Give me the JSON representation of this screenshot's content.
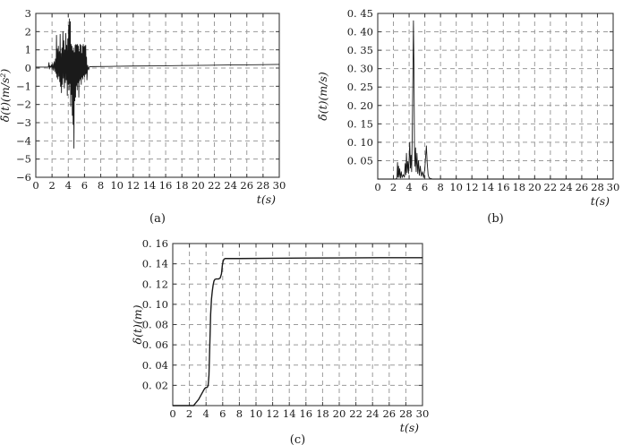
{
  "figure": {
    "background": "#ffffff",
    "line_color": "#1a1a1a",
    "grid_color": "#9b9b9b",
    "axis_color": "#3a3a3a"
  },
  "chart_data": [
    {
      "id": "a",
      "type": "line",
      "caption": "(a)",
      "xlabel": "t(s)",
      "ylabel": "δ̈(t)(m/s²)",
      "xlim": [
        0,
        30
      ],
      "ylim": [
        -6,
        3
      ],
      "grid": true,
      "legend": "none",
      "xticks": [
        0,
        2,
        4,
        6,
        8,
        10,
        12,
        14,
        16,
        18,
        20,
        22,
        24,
        26,
        28,
        30
      ],
      "ytick_values": [
        3,
        2,
        1,
        0,
        -1,
        -2,
        -3,
        -4,
        -5,
        -6
      ],
      "ytick_labels": [
        "3",
        "2",
        "1",
        "0",
        "−1",
        "−2",
        "−3",
        "−4",
        "−5",
        "−6"
      ],
      "points": [
        [
          0,
          0.05
        ],
        [
          0.6,
          0.05
        ],
        [
          1.2,
          0.05
        ],
        [
          1.55,
          0.06
        ],
        [
          1.62,
          0.3
        ],
        [
          1.68,
          -0.05
        ],
        [
          1.75,
          0.12
        ],
        [
          1.85,
          0.04
        ],
        [
          1.95,
          0.18
        ],
        [
          2.0,
          -0.08
        ],
        [
          2.1,
          0.25
        ],
        [
          2.18,
          -0.12
        ],
        [
          2.28,
          0.35
        ],
        [
          2.35,
          -0.2
        ],
        [
          2.42,
          0.5
        ],
        [
          2.5,
          -0.3
        ],
        [
          2.55,
          1.8
        ],
        [
          2.6,
          -0.5
        ],
        [
          2.66,
          1.05
        ],
        [
          2.72,
          -0.6
        ],
        [
          2.78,
          1.2
        ],
        [
          2.84,
          -0.45
        ],
        [
          2.9,
          0.9
        ],
        [
          2.95,
          -0.75
        ],
        [
          3.0,
          1.85
        ],
        [
          3.05,
          -1.0
        ],
        [
          3.1,
          0.8
        ],
        [
          3.16,
          -1.35
        ],
        [
          3.22,
          1.1
        ],
        [
          3.28,
          -0.9
        ],
        [
          3.34,
          2.0
        ],
        [
          3.4,
          -0.55
        ],
        [
          3.46,
          1.5
        ],
        [
          3.52,
          -1.1
        ],
        [
          3.58,
          1.0
        ],
        [
          3.64,
          -0.8
        ],
        [
          3.7,
          1.9
        ],
        [
          3.76,
          -0.65
        ],
        [
          3.82,
          1.25
        ],
        [
          3.88,
          -1.5
        ],
        [
          3.94,
          1.6
        ],
        [
          4.0,
          -0.9
        ],
        [
          4.05,
          2.35
        ],
        [
          4.1,
          -1.2
        ],
        [
          4.15,
          2.7
        ],
        [
          4.2,
          -0.85
        ],
        [
          4.25,
          2.55
        ],
        [
          4.3,
          -2.1
        ],
        [
          4.35,
          1.3
        ],
        [
          4.4,
          -1.45
        ],
        [
          4.45,
          1.2
        ],
        [
          4.5,
          -2.6
        ],
        [
          4.55,
          0.95
        ],
        [
          4.6,
          -3.1
        ],
        [
          4.65,
          1.1
        ],
        [
          4.7,
          -4.4
        ],
        [
          4.75,
          0.85
        ],
        [
          4.8,
          -1.8
        ],
        [
          4.85,
          1.25
        ],
        [
          4.9,
          -1.6
        ],
        [
          4.95,
          1.3
        ],
        [
          5.0,
          -0.95
        ],
        [
          5.05,
          1.25
        ],
        [
          5.1,
          -1.2
        ],
        [
          5.15,
          1.3
        ],
        [
          5.2,
          -0.8
        ],
        [
          5.25,
          1.2
        ],
        [
          5.3,
          -1.6
        ],
        [
          5.35,
          0.9
        ],
        [
          5.4,
          -0.7
        ],
        [
          5.45,
          1.3
        ],
        [
          5.5,
          -0.6
        ],
        [
          5.55,
          1.25
        ],
        [
          5.6,
          -0.9
        ],
        [
          5.65,
          0.8
        ],
        [
          5.7,
          -0.5
        ],
        [
          5.75,
          1.2
        ],
        [
          5.8,
          -0.6
        ],
        [
          5.85,
          1.3
        ],
        [
          5.9,
          -0.4
        ],
        [
          5.95,
          1.15
        ],
        [
          6.0,
          -0.5
        ],
        [
          6.05,
          1.2
        ],
        [
          6.1,
          -0.35
        ],
        [
          6.15,
          1.25
        ],
        [
          6.2,
          -0.3
        ],
        [
          6.25,
          0.6
        ],
        [
          6.3,
          -0.65
        ],
        [
          6.38,
          0.15
        ],
        [
          6.5,
          -0.1
        ],
        [
          6.6,
          0.07
        ],
        [
          7,
          0.08
        ],
        [
          9,
          0.09
        ],
        [
          12,
          0.11
        ],
        [
          15,
          0.12
        ],
        [
          18,
          0.14
        ],
        [
          21,
          0.15
        ],
        [
          24,
          0.17
        ],
        [
          27,
          0.18
        ],
        [
          30,
          0.2
        ]
      ]
    },
    {
      "id": "b",
      "type": "line",
      "caption": "(b)",
      "xlabel": "t(s)",
      "ylabel": "δ̇(t)(m/s)",
      "xlim": [
        0,
        30
      ],
      "ylim": [
        0,
        0.45
      ],
      "grid": true,
      "legend": "none",
      "xticks": [
        0,
        2,
        4,
        6,
        8,
        10,
        12,
        14,
        16,
        18,
        20,
        22,
        24,
        26,
        28,
        30
      ],
      "ytick_values": [
        0.45,
        0.4,
        0.35,
        0.3,
        0.25,
        0.2,
        0.15,
        0.1,
        0.05
      ],
      "ytick_labels": [
        "0. 45",
        "0. 40",
        "0. 35",
        "0. 30",
        "0. 25",
        "0. 20",
        "0. 15",
        "0. 10",
        "0. 05"
      ],
      "points": [
        [
          0,
          0
        ],
        [
          2.3,
          0
        ],
        [
          2.45,
          0.003
        ],
        [
          2.52,
          0.045
        ],
        [
          2.58,
          0.006
        ],
        [
          2.65,
          0.035
        ],
        [
          2.72,
          0.004
        ],
        [
          2.8,
          0.028
        ],
        [
          2.9,
          0.003
        ],
        [
          3.0,
          0.02
        ],
        [
          3.1,
          0.004
        ],
        [
          3.25,
          0.012
        ],
        [
          3.4,
          0.005
        ],
        [
          3.5,
          0.042
        ],
        [
          3.58,
          0.012
        ],
        [
          3.66,
          0.07
        ],
        [
          3.74,
          0.018
        ],
        [
          3.84,
          0.048
        ],
        [
          3.92,
          0.015
        ],
        [
          4.0,
          0.055
        ],
        [
          4.08,
          0.1
        ],
        [
          4.16,
          0.03
        ],
        [
          4.24,
          0.065
        ],
        [
          4.32,
          0.02
        ],
        [
          4.4,
          0.12
        ],
        [
          4.48,
          0.28
        ],
        [
          4.55,
          0.43
        ],
        [
          4.62,
          0.3
        ],
        [
          4.68,
          0.09
        ],
        [
          4.74,
          0.035
        ],
        [
          4.82,
          0.085
        ],
        [
          4.9,
          0.02
        ],
        [
          5.0,
          0.07
        ],
        [
          5.1,
          0.015
        ],
        [
          5.2,
          0.05
        ],
        [
          5.3,
          0.01
        ],
        [
          5.42,
          0.035
        ],
        [
          5.55,
          0.008
        ],
        [
          5.7,
          0.02
        ],
        [
          5.85,
          0.004
        ],
        [
          6.0,
          0.028
        ],
        [
          6.1,
          0.06
        ],
        [
          6.2,
          0.09
        ],
        [
          6.3,
          0.045
        ],
        [
          6.42,
          0.012
        ],
        [
          6.55,
          0.003
        ],
        [
          7,
          0
        ],
        [
          30,
          0
        ]
      ]
    },
    {
      "id": "c",
      "type": "line",
      "caption": "(c)",
      "xlabel": "t(s)",
      "ylabel": "δ(t)(m)",
      "xlim": [
        0,
        30
      ],
      "ylim": [
        0,
        0.16
      ],
      "grid": true,
      "legend": "none",
      "xticks": [
        0,
        2,
        4,
        6,
        8,
        10,
        12,
        14,
        16,
        18,
        20,
        22,
        24,
        26,
        28,
        30
      ],
      "ytick_values": [
        0.16,
        0.14,
        0.12,
        0.1,
        0.08,
        0.06,
        0.04,
        0.02
      ],
      "ytick_labels": [
        "0. 16",
        "0. 14",
        "0. 12",
        "0. 10",
        "0. 08",
        "0. 06",
        "0. 04",
        "0. 02"
      ],
      "points": [
        [
          0,
          0
        ],
        [
          2.5,
          0
        ],
        [
          2.7,
          0.002
        ],
        [
          2.9,
          0.004
        ],
        [
          3.1,
          0.006
        ],
        [
          3.3,
          0.009
        ],
        [
          3.5,
          0.012
        ],
        [
          3.7,
          0.015
        ],
        [
          3.85,
          0.017
        ],
        [
          4.0,
          0.018
        ],
        [
          4.15,
          0.018
        ],
        [
          4.25,
          0.02
        ],
        [
          4.35,
          0.03
        ],
        [
          4.45,
          0.06
        ],
        [
          4.55,
          0.09
        ],
        [
          4.65,
          0.105
        ],
        [
          4.75,
          0.113
        ],
        [
          4.85,
          0.119
        ],
        [
          4.95,
          0.123
        ],
        [
          5.05,
          0.1245
        ],
        [
          5.2,
          0.125
        ],
        [
          5.5,
          0.125
        ],
        [
          5.7,
          0.126
        ],
        [
          5.85,
          0.13
        ],
        [
          5.95,
          0.138
        ],
        [
          6.05,
          0.1425
        ],
        [
          6.15,
          0.1445
        ],
        [
          6.3,
          0.1452
        ],
        [
          8,
          0.1452
        ],
        [
          12,
          0.1455
        ],
        [
          16,
          0.1457
        ],
        [
          20,
          0.1458
        ],
        [
          25,
          0.146
        ],
        [
          30,
          0.146
        ]
      ]
    }
  ]
}
